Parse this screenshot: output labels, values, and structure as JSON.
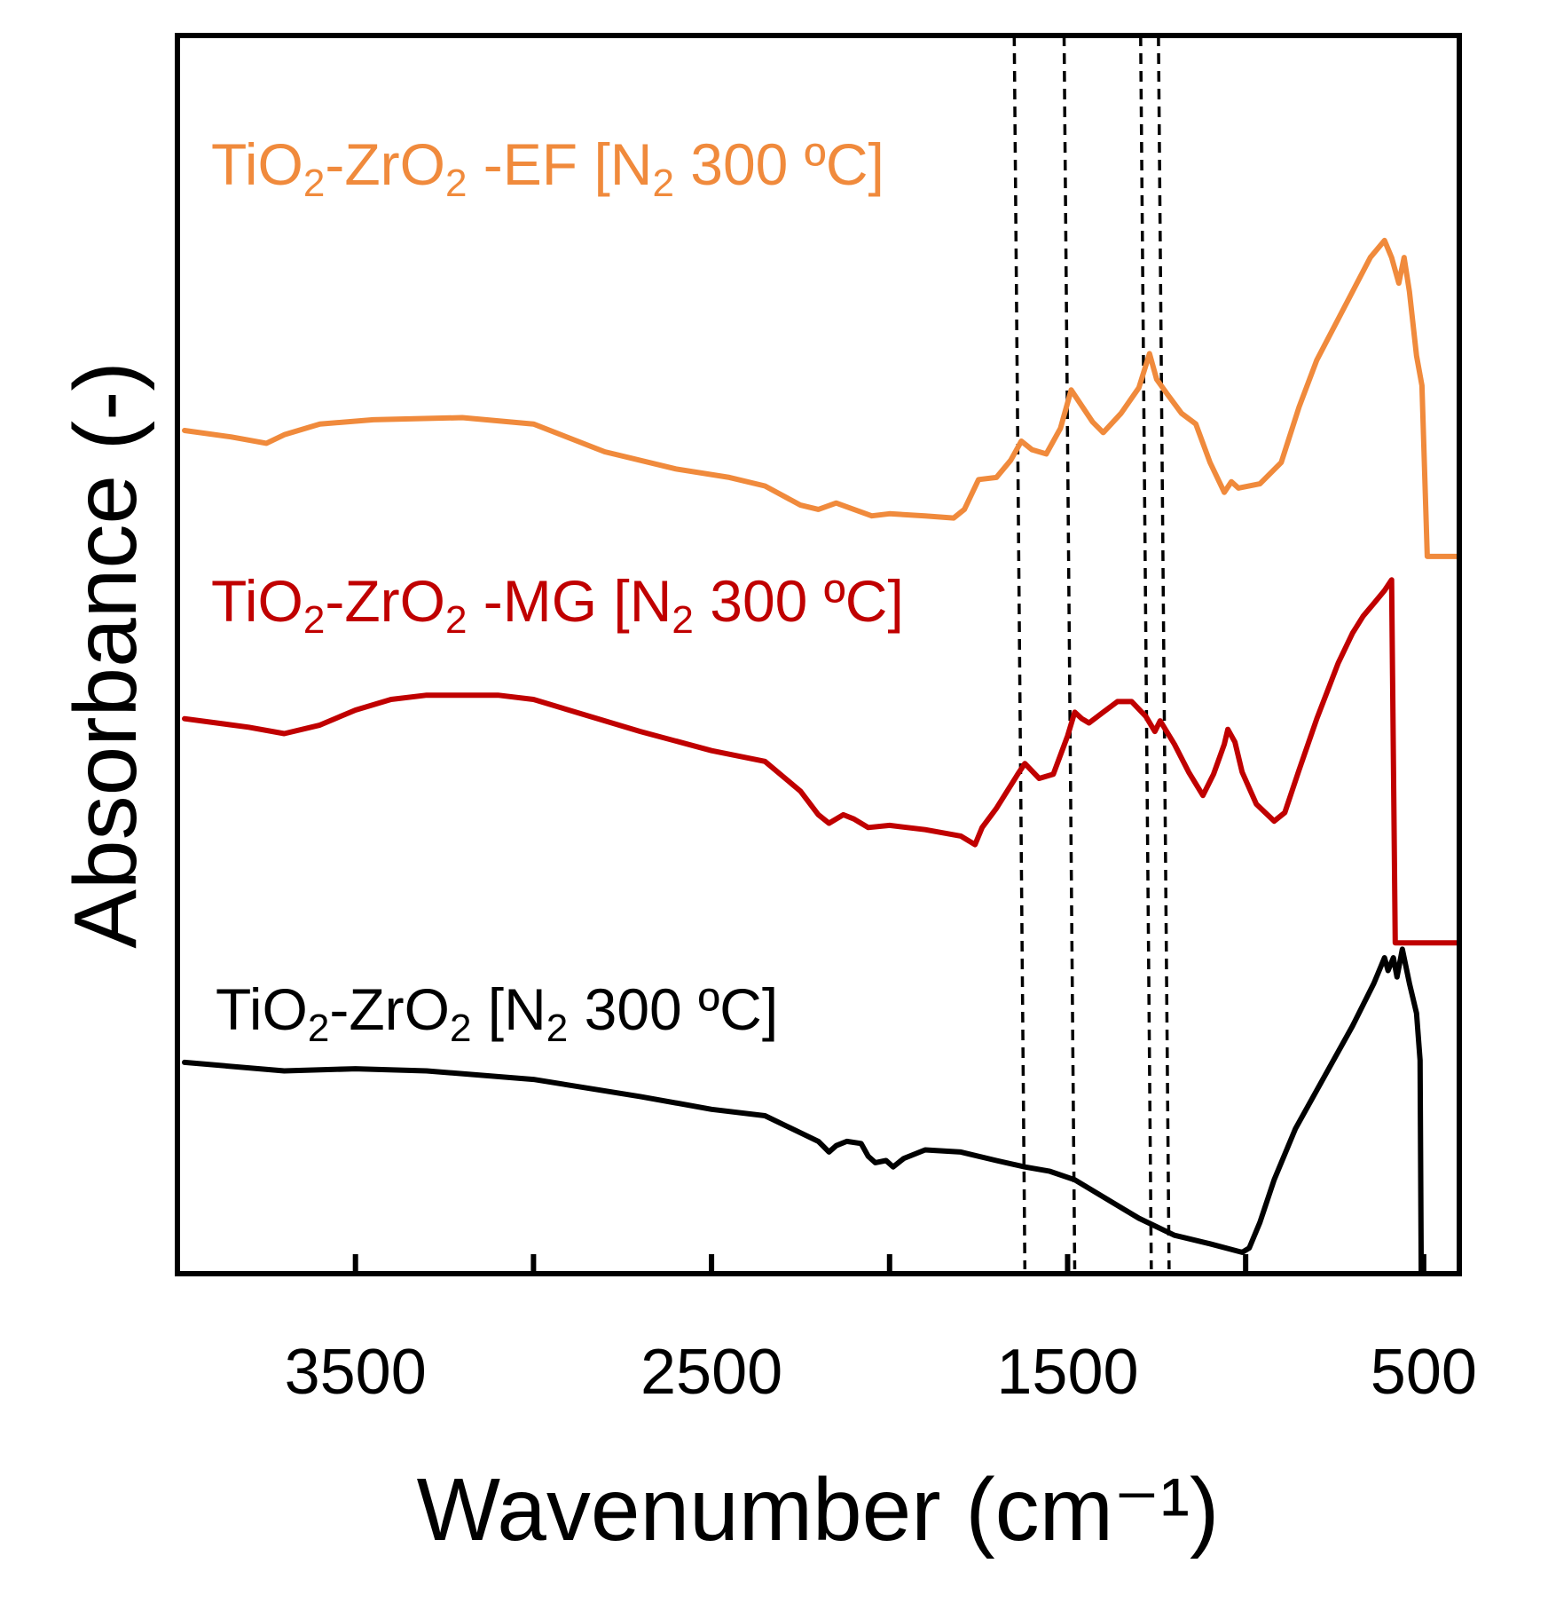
{
  "chart_data": {
    "type": "line",
    "xlabel": "Wavenumber (cm⁻¹)",
    "ylabel": "Absorbance (-)",
    "xlim": [
      4000,
      400
    ],
    "ylim": [
      0,
      2.9
    ],
    "x_reversed": true,
    "x_ticks": [
      3500,
      3000,
      2500,
      2000,
      1500,
      1000,
      500
    ],
    "x_tick_labels": [
      "3500",
      "2500",
      "1500",
      "500"
    ],
    "y_ticks_shown": false,
    "grid": false,
    "legend": "none",
    "dashed_markers": [
      1620,
      1480,
      1265,
      1215
    ],
    "series": [
      {
        "name": "TiO₂-ZrO₂ [N₂ 300 ºC]",
        "color": "#000000",
        "label_parts": [
          {
            "t": "TiO",
            "s": "n"
          },
          {
            "t": "2",
            "s": "sub"
          },
          {
            "t": "-ZrO",
            "s": "n"
          },
          {
            "t": "2",
            "s": "sub"
          },
          {
            "t": " [N",
            "s": "n"
          },
          {
            "t": "2",
            "s": "sub"
          },
          {
            "t": " 300 ºC]",
            "s": "n"
          }
        ],
        "points": [
          [
            3980,
            0.495
          ],
          [
            3700,
            0.475
          ],
          [
            3500,
            0.48
          ],
          [
            3300,
            0.475
          ],
          [
            3000,
            0.455
          ],
          [
            2700,
            0.415
          ],
          [
            2500,
            0.385
          ],
          [
            2350,
            0.37
          ],
          [
            2200,
            0.31
          ],
          [
            2170,
            0.285
          ],
          [
            2150,
            0.3
          ],
          [
            2120,
            0.31
          ],
          [
            2080,
            0.305
          ],
          [
            2060,
            0.275
          ],
          [
            2040,
            0.26
          ],
          [
            2010,
            0.265
          ],
          [
            1990,
            0.25
          ],
          [
            1960,
            0.27
          ],
          [
            1900,
            0.29
          ],
          [
            1800,
            0.285
          ],
          [
            1700,
            0.265
          ],
          [
            1620,
            0.25
          ],
          [
            1550,
            0.24
          ],
          [
            1480,
            0.22
          ],
          [
            1400,
            0.18
          ],
          [
            1300,
            0.13
          ],
          [
            1200,
            0.09
          ],
          [
            1100,
            0.07
          ],
          [
            1010,
            0.05
          ],
          [
            990,
            0.06
          ],
          [
            960,
            0.12
          ],
          [
            920,
            0.22
          ],
          [
            860,
            0.34
          ],
          [
            780,
            0.46
          ],
          [
            700,
            0.58
          ],
          [
            640,
            0.68
          ],
          [
            610,
            0.74
          ],
          [
            600,
            0.71
          ],
          [
            585,
            0.74
          ],
          [
            575,
            0.695
          ],
          [
            560,
            0.76
          ],
          [
            540,
            0.68
          ],
          [
            520,
            0.61
          ],
          [
            510,
            0.5
          ],
          [
            507,
            0.0
          ]
        ]
      },
      {
        "name": "TiO₂-ZrO₂ -MG [N₂ 300 ºC]",
        "color": "#c00000",
        "label_parts": [
          {
            "t": "TiO",
            "s": "n"
          },
          {
            "t": "2",
            "s": "sub"
          },
          {
            "t": "-ZrO",
            "s": "n"
          },
          {
            "t": "2",
            "s": "sub"
          },
          {
            "t": " -MG [N",
            "s": "n"
          },
          {
            "t": "2",
            "s": "sub"
          },
          {
            "t": " 300 ºC]",
            "s": "n"
          }
        ],
        "points": [
          [
            3980,
            1.3
          ],
          [
            3800,
            1.28
          ],
          [
            3700,
            1.265
          ],
          [
            3600,
            1.285
          ],
          [
            3500,
            1.32
          ],
          [
            3400,
            1.345
          ],
          [
            3300,
            1.355
          ],
          [
            3100,
            1.355
          ],
          [
            3000,
            1.345
          ],
          [
            2700,
            1.27
          ],
          [
            2500,
            1.225
          ],
          [
            2350,
            1.2
          ],
          [
            2250,
            1.13
          ],
          [
            2200,
            1.075
          ],
          [
            2170,
            1.055
          ],
          [
            2130,
            1.075
          ],
          [
            2100,
            1.065
          ],
          [
            2060,
            1.045
          ],
          [
            2000,
            1.05
          ],
          [
            1900,
            1.04
          ],
          [
            1800,
            1.025
          ],
          [
            1760,
            1.005
          ],
          [
            1740,
            1.045
          ],
          [
            1700,
            1.09
          ],
          [
            1640,
            1.17
          ],
          [
            1620,
            1.195
          ],
          [
            1580,
            1.16
          ],
          [
            1540,
            1.17
          ],
          [
            1500,
            1.26
          ],
          [
            1480,
            1.315
          ],
          [
            1460,
            1.3
          ],
          [
            1440,
            1.29
          ],
          [
            1400,
            1.315
          ],
          [
            1360,
            1.34
          ],
          [
            1320,
            1.34
          ],
          [
            1280,
            1.305
          ],
          [
            1255,
            1.27
          ],
          [
            1240,
            1.295
          ],
          [
            1200,
            1.24
          ],
          [
            1160,
            1.175
          ],
          [
            1120,
            1.12
          ],
          [
            1090,
            1.17
          ],
          [
            1060,
            1.24
          ],
          [
            1050,
            1.275
          ],
          [
            1030,
            1.245
          ],
          [
            1010,
            1.175
          ],
          [
            970,
            1.1
          ],
          [
            920,
            1.06
          ],
          [
            890,
            1.08
          ],
          [
            850,
            1.18
          ],
          [
            800,
            1.3
          ],
          [
            740,
            1.43
          ],
          [
            700,
            1.5
          ],
          [
            670,
            1.54
          ],
          [
            640,
            1.57
          ],
          [
            610,
            1.6
          ],
          [
            590,
            1.625
          ],
          [
            580,
            0.775
          ],
          [
            400,
            0.775
          ]
        ]
      },
      {
        "name": "TiO₂-ZrO₂ -EF [N₂ 300 ºC]",
        "color": "#f08a3c",
        "label_parts": [
          {
            "t": "TiO",
            "s": "n"
          },
          {
            "t": "2",
            "s": "sub"
          },
          {
            "t": "-ZrO",
            "s": "n"
          },
          {
            "t": "2",
            "s": "sub"
          },
          {
            "t": " -EF [N",
            "s": "n"
          },
          {
            "t": "2",
            "s": "sub"
          },
          {
            "t": " 300 ºC]",
            "s": "n"
          }
        ],
        "points": [
          [
            3980,
            1.975
          ],
          [
            3850,
            1.96
          ],
          [
            3750,
            1.945
          ],
          [
            3700,
            1.965
          ],
          [
            3600,
            1.99
          ],
          [
            3450,
            2.0
          ],
          [
            3200,
            2.005
          ],
          [
            3000,
            1.99
          ],
          [
            2800,
            1.925
          ],
          [
            2600,
            1.885
          ],
          [
            2450,
            1.865
          ],
          [
            2350,
            1.845
          ],
          [
            2250,
            1.8
          ],
          [
            2200,
            1.79
          ],
          [
            2150,
            1.805
          ],
          [
            2100,
            1.79
          ],
          [
            2050,
            1.775
          ],
          [
            2000,
            1.78
          ],
          [
            1900,
            1.775
          ],
          [
            1820,
            1.77
          ],
          [
            1790,
            1.79
          ],
          [
            1750,
            1.86
          ],
          [
            1700,
            1.865
          ],
          [
            1660,
            1.905
          ],
          [
            1630,
            1.95
          ],
          [
            1600,
            1.93
          ],
          [
            1560,
            1.92
          ],
          [
            1520,
            1.98
          ],
          [
            1490,
            2.07
          ],
          [
            1470,
            2.045
          ],
          [
            1430,
            1.995
          ],
          [
            1400,
            1.97
          ],
          [
            1350,
            2.015
          ],
          [
            1300,
            2.075
          ],
          [
            1270,
            2.155
          ],
          [
            1250,
            2.095
          ],
          [
            1220,
            2.06
          ],
          [
            1180,
            2.015
          ],
          [
            1140,
            1.99
          ],
          [
            1100,
            1.9
          ],
          [
            1060,
            1.83
          ],
          [
            1040,
            1.855
          ],
          [
            1020,
            1.84
          ],
          [
            960,
            1.85
          ],
          [
            900,
            1.9
          ],
          [
            850,
            2.03
          ],
          [
            800,
            2.14
          ],
          [
            750,
            2.22
          ],
          [
            700,
            2.3
          ],
          [
            650,
            2.38
          ],
          [
            610,
            2.42
          ],
          [
            590,
            2.38
          ],
          [
            570,
            2.32
          ],
          [
            555,
            2.38
          ],
          [
            540,
            2.3
          ],
          [
            520,
            2.15
          ],
          [
            505,
            2.08
          ],
          [
            490,
            1.68
          ],
          [
            400,
            1.68
          ]
        ]
      }
    ]
  }
}
